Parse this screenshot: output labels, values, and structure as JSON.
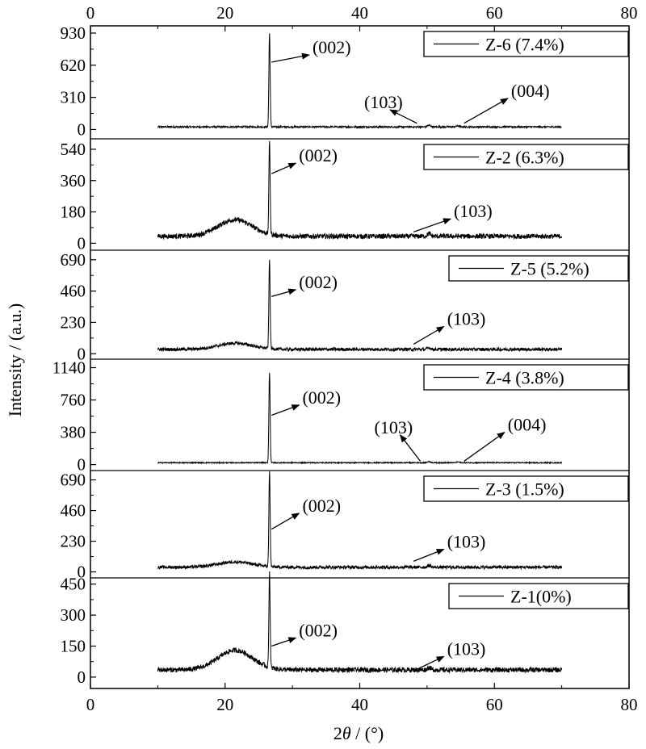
{
  "chart_data": {
    "type": "line",
    "xlabel_prefix": "2",
    "xlabel_symbol": "θ",
    "xlabel_suffix": " / (°)",
    "ylabel": "Intensity / (a.u.)",
    "xlim": [
      0,
      80
    ],
    "x_ticks": [
      0,
      20,
      40,
      60,
      80
    ],
    "x_tick_labels": [
      "0",
      "20",
      "40",
      "60",
      "80"
    ],
    "grid": false,
    "legend_placement": "top-right of each panel",
    "line_color": "#000000",
    "panels": [
      {
        "series": "Z-6 (7.4%)",
        "ylim": [
          -90,
          1000
        ],
        "y_ticks": [
          0,
          310,
          620,
          930
        ],
        "y_tick_labels": [
          "0",
          "310",
          "620",
          "930"
        ],
        "baseline": 25,
        "noise": 8,
        "hump": 0,
        "peaks": [
          {
            "x": 26.6,
            "y": 900
          },
          {
            "x": 50.3,
            "y": 15
          },
          {
            "x": 54.6,
            "y": 10
          }
        ],
        "annotations": [
          {
            "label": "(002)",
            "from": [
              26.9,
              650
            ],
            "to": [
              32.5,
              720
            ]
          },
          {
            "label": "(103)",
            "from": [
              48.5,
              60
            ],
            "to": [
              44.5,
              190
            ]
          },
          {
            "label": "(004)",
            "from": [
              55.5,
              60
            ],
            "to": [
              62.0,
              300
            ]
          }
        ]
      },
      {
        "series": "Z-2 (6.3%)",
        "ylim": [
          -40,
          600
        ],
        "y_ticks": [
          0,
          180,
          360,
          540
        ],
        "y_tick_labels": [
          "0",
          "180",
          "360",
          "540"
        ],
        "baseline": 40,
        "noise": 14,
        "hump": 95,
        "peaks": [
          {
            "x": 26.6,
            "y": 540
          },
          {
            "x": 50.3,
            "y": 15
          }
        ],
        "annotations": [
          {
            "label": "(002)",
            "from": [
              26.9,
              400
            ],
            "to": [
              30.5,
              460
            ]
          },
          {
            "label": "(103)",
            "from": [
              48.0,
              65
            ],
            "to": [
              53.5,
              140
            ]
          }
        ]
      },
      {
        "series": "Z-5 (5.2%)",
        "ylim": [
          -40,
          760
        ],
        "y_ticks": [
          0,
          230,
          460,
          690
        ],
        "y_tick_labels": [
          "0",
          "230",
          "460",
          "690"
        ],
        "baseline": 32,
        "noise": 12,
        "hump": 45,
        "peaks": [
          {
            "x": 26.6,
            "y": 650
          },
          {
            "x": 50.3,
            "y": 12
          }
        ],
        "annotations": [
          {
            "label": "(002)",
            "from": [
              26.9,
              420
            ],
            "to": [
              30.5,
              470
            ]
          },
          {
            "label": "(103)",
            "from": [
              48.0,
              70
            ],
            "to": [
              52.5,
              200
            ]
          }
        ]
      },
      {
        "series": "Z-4 (3.8%)",
        "ylim": [
          -70,
          1240
        ],
        "y_ticks": [
          0,
          380,
          760,
          1140
        ],
        "y_tick_labels": [
          "0",
          "380",
          "760",
          "1140"
        ],
        "baseline": 22,
        "noise": 6,
        "hump": 0,
        "peaks": [
          {
            "x": 26.6,
            "y": 1060
          },
          {
            "x": 50.3,
            "y": 12
          },
          {
            "x": 54.6,
            "y": 8
          }
        ],
        "annotations": [
          {
            "label": "(002)",
            "from": [
              26.9,
              580
            ],
            "to": [
              31.0,
              700
            ]
          },
          {
            "label": "(103)",
            "from": [
              49.0,
              40
            ],
            "to": [
              46.0,
              350
            ]
          },
          {
            "label": "(004)",
            "from": [
              55.5,
              40
            ],
            "to": [
              61.5,
              380
            ]
          }
        ]
      },
      {
        "series": "Z-3 (1.5%)",
        "ylim": [
          -45,
          760
        ],
        "y_ticks": [
          0,
          230,
          460,
          690
        ],
        "y_tick_labels": [
          "0",
          "230",
          "460",
          "690"
        ],
        "baseline": 35,
        "noise": 12,
        "hump": 40,
        "peaks": [
          {
            "x": 26.6,
            "y": 720
          },
          {
            "x": 50.3,
            "y": 12
          }
        ],
        "annotations": [
          {
            "label": "(002)",
            "from": [
              26.9,
              320
            ],
            "to": [
              31.0,
              440
            ]
          },
          {
            "label": "(103)",
            "from": [
              48.0,
              80
            ],
            "to": [
              52.5,
              170
            ]
          }
        ]
      },
      {
        "series": "Z-1(0%)",
        "ylim": [
          -55,
          480
        ],
        "y_ticks": [
          0,
          150,
          300,
          450
        ],
        "y_tick_labels": [
          "0",
          "150",
          "300",
          "450"
        ],
        "baseline": 35,
        "noise": 12,
        "hump": 95,
        "peaks": [
          {
            "x": 26.6,
            "y": 460
          },
          {
            "x": 50.3,
            "y": 12
          }
        ],
        "annotations": [
          {
            "label": "(002)",
            "from": [
              26.9,
              150
            ],
            "to": [
              30.5,
              190
            ]
          },
          {
            "label": "(103)",
            "from": [
              48.0,
              30
            ],
            "to": [
              52.5,
              100
            ]
          }
        ]
      }
    ]
  }
}
